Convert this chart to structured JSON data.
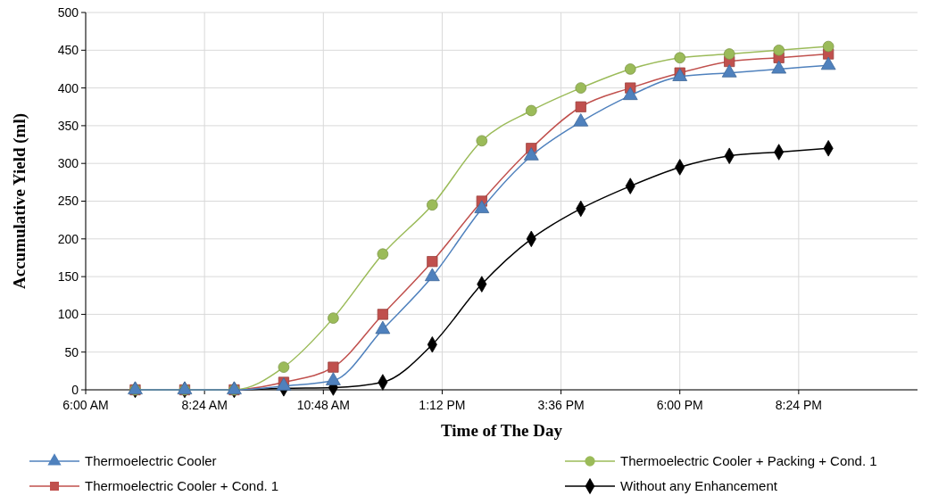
{
  "chart_data": {
    "type": "line",
    "xlabel": "Time of The Day",
    "ylabel": "Accumulative Yield (ml)",
    "x": [
      7,
      8,
      9,
      10,
      11,
      12,
      13,
      14,
      15,
      16,
      17,
      18,
      19,
      20,
      21
    ],
    "series": [
      {
        "name": "Thermoelectric Cooler",
        "color": "#4f81bd",
        "marker": "triangle",
        "values": [
          0,
          0,
          0,
          5,
          12,
          80,
          150,
          240,
          310,
          355,
          390,
          415,
          420,
          425,
          430
        ]
      },
      {
        "name": "Thermoelectric Cooler + Packing + Cond. 1",
        "color": "#9bbb59",
        "marker": "circle",
        "values": [
          0,
          0,
          0,
          30,
          95,
          180,
          245,
          330,
          370,
          400,
          425,
          440,
          445,
          450,
          455
        ]
      },
      {
        "name": "Thermoelectric Cooler + Cond. 1",
        "color": "#c0504d",
        "marker": "square",
        "values": [
          0,
          0,
          0,
          10,
          30,
          100,
          170,
          250,
          320,
          375,
          400,
          420,
          435,
          440,
          445
        ]
      },
      {
        "name": "Without any Enhancement",
        "color": "#000000",
        "marker": "diamond",
        "values": [
          0,
          0,
          0,
          2,
          3,
          10,
          60,
          140,
          200,
          240,
          270,
          295,
          310,
          315,
          320
        ]
      }
    ],
    "xlim": [
      6,
      22.8
    ],
    "xticks": [
      {
        "value": 6,
        "label": "6:00 AM"
      },
      {
        "value": 8.4,
        "label": "8:24 AM"
      },
      {
        "value": 10.8,
        "label": "10:48 AM"
      },
      {
        "value": 13.2,
        "label": "1:12 PM"
      },
      {
        "value": 15.6,
        "label": "3:36 PM"
      },
      {
        "value": 18,
        "label": "6:00 PM"
      },
      {
        "value": 20.4,
        "label": "8:24 PM"
      }
    ],
    "ylim": [
      0,
      500
    ],
    "yticks": [
      0,
      50,
      100,
      150,
      200,
      250,
      300,
      350,
      400,
      450,
      500
    ],
    "grid": true,
    "legend": "bottom",
    "line_style": "solid"
  }
}
